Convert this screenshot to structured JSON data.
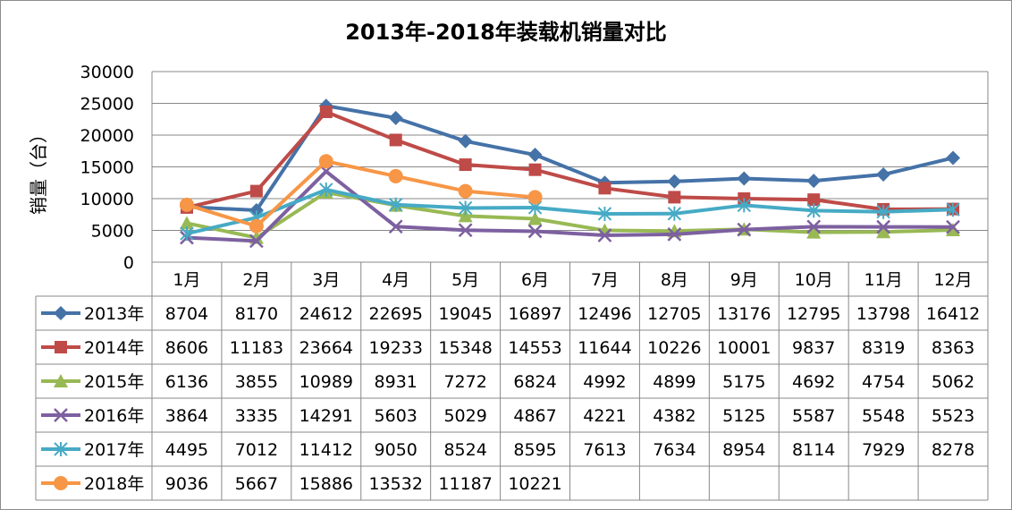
{
  "chart_data": {
    "type": "line",
    "title": "2013年-2018年装载机销量对比",
    "xlabel": "",
    "ylabel": "销量（台）",
    "ylim": [
      0,
      30000
    ],
    "yticks": [
      0,
      5000,
      10000,
      15000,
      20000,
      25000,
      30000
    ],
    "grid": true,
    "legend_placement": "data-table",
    "categories": [
      "1月",
      "2月",
      "3月",
      "4月",
      "5月",
      "6月",
      "7月",
      "8月",
      "9月",
      "10月",
      "11月",
      "12月"
    ],
    "series": [
      {
        "name": "2013年",
        "color": "#4572A7",
        "marker": "diamond",
        "values": [
          8704,
          8170,
          24612,
          22695,
          19045,
          16897,
          12496,
          12705,
          13176,
          12795,
          13798,
          16412
        ]
      },
      {
        "name": "2014年",
        "color": "#BE4B48",
        "marker": "square",
        "values": [
          8606,
          11183,
          23664,
          19233,
          15348,
          14553,
          11644,
          10226,
          10001,
          9837,
          8319,
          8363
        ]
      },
      {
        "name": "2015年",
        "color": "#98B954",
        "marker": "triangle",
        "values": [
          6136,
          3855,
          10989,
          8931,
          7272,
          6824,
          4992,
          4899,
          5175,
          4692,
          4754,
          5062
        ]
      },
      {
        "name": "2016年",
        "color": "#7D60A0",
        "marker": "x",
        "values": [
          3864,
          3335,
          14291,
          5603,
          5029,
          4867,
          4221,
          4382,
          5125,
          5587,
          5548,
          5523
        ]
      },
      {
        "name": "2017年",
        "color": "#46AAC5",
        "marker": "star",
        "values": [
          4495,
          7012,
          11412,
          9050,
          8524,
          8595,
          7613,
          7634,
          8954,
          8114,
          7929,
          8278
        ]
      },
      {
        "name": "2018年",
        "color": "#F79646",
        "marker": "circle",
        "values": [
          9036,
          5667,
          15886,
          13532,
          11187,
          10221,
          null,
          null,
          null,
          null,
          null,
          null
        ]
      }
    ]
  }
}
